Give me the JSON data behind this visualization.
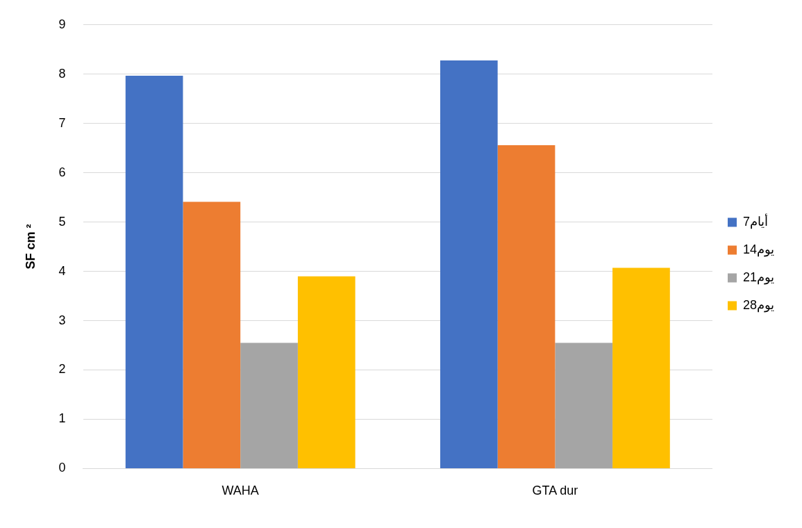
{
  "chart_data": {
    "type": "bar",
    "ylabel": "SF cm ²",
    "categories": [
      "WAHA",
      "GTA dur"
    ],
    "series": [
      {
        "name": "7أيام",
        "color": "#4472c4",
        "values": [
          7.97,
          8.28
        ]
      },
      {
        "name": "14يوم",
        "color": "#ed7d31",
        "values": [
          5.41,
          6.56
        ]
      },
      {
        "name": "21يوم",
        "color": "#a5a5a5",
        "values": [
          2.55,
          2.55
        ]
      },
      {
        "name": "28يوم",
        "color": "#ffc000",
        "values": [
          3.9,
          4.07
        ]
      }
    ],
    "ylim": [
      0,
      9
    ],
    "yticks": [
      0,
      1,
      2,
      3,
      4,
      5,
      6,
      7,
      8,
      9
    ],
    "grid": "y",
    "legend": "right"
  }
}
